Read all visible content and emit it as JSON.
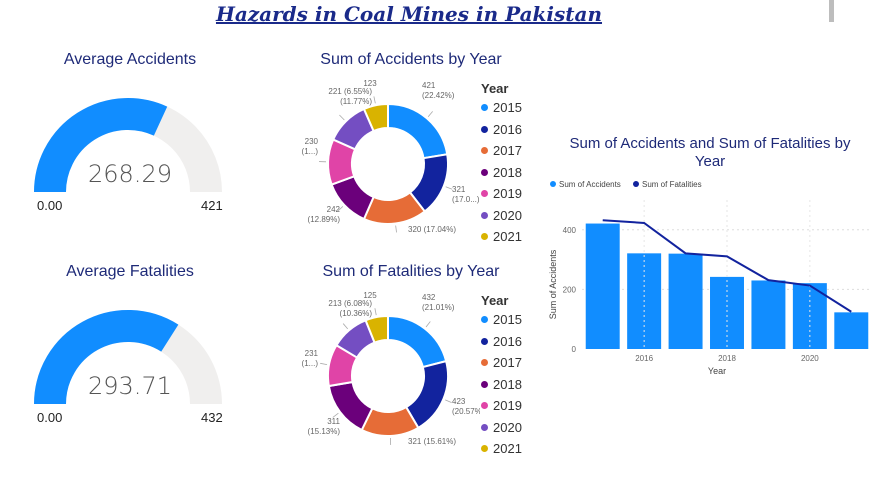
{
  "page_title": "Hazards in Coal Mines in Pakistan",
  "colors": {
    "title": "#1a2a8a",
    "gauge_fill": "#118dff",
    "gauge_track": "#f0efee",
    "bar": "#118dff",
    "line": "#12239e"
  },
  "year_colors": [
    "#118dff",
    "#12239e",
    "#e66c37",
    "#6b007b",
    "#e044a7",
    "#744ec2",
    "#d9b300"
  ],
  "gauges": [
    {
      "title": "Average Accidents",
      "value": "268.29",
      "min_label": "0.00",
      "max_label": "421",
      "fill_fraction": 0.637
    },
    {
      "title": "Average Fatalities",
      "value": "293.71",
      "min_label": "0.00",
      "max_label": "432",
      "fill_fraction": 0.68
    }
  ],
  "chart_data": [
    {
      "type": "pie",
      "title": "Sum of Accidents by Year",
      "legend_title": "Year",
      "categories": [
        "2015",
        "2016",
        "2017",
        "2018",
        "2019",
        "2020",
        "2021"
      ],
      "values": [
        421,
        321,
        320,
        242,
        230,
        221,
        123
      ],
      "labels": [
        [
          "421",
          "(22.42%)"
        ],
        [
          "321",
          "(17.0...)"
        ],
        [
          "320 (17.04%)"
        ],
        [
          "242",
          "(12.89%)"
        ],
        [
          "230",
          "(1...)"
        ],
        [
          "221 (6.55%)",
          "(11.77%)"
        ],
        [
          "123"
        ]
      ]
    },
    {
      "type": "pie",
      "title": "Sum of Fatalities by Year",
      "legend_title": "Year",
      "categories": [
        "2015",
        "2016",
        "2017",
        "2018",
        "2019",
        "2020",
        "2021"
      ],
      "values": [
        432,
        423,
        321,
        311,
        231,
        213,
        125
      ],
      "labels": [
        [
          "432",
          "(21.01%)"
        ],
        [
          "423",
          "(20.57%)"
        ],
        [
          "321 (15.61%)"
        ],
        [
          "311",
          "(15.13%)"
        ],
        [
          "231",
          "(1...)"
        ],
        [
          "213 (6.08%)",
          "(10.36%)"
        ],
        [
          "125"
        ]
      ]
    },
    {
      "type": "bar",
      "title": "Sum of Accidents and Sum of Fatalities by Year",
      "categories": [
        "2015",
        "2016",
        "2017",
        "2018",
        "2019",
        "2020",
        "2021"
      ],
      "series": [
        {
          "name": "Sum of Accidents",
          "kind": "bar",
          "values": [
            421,
            321,
            320,
            242,
            230,
            221,
            123
          ]
        },
        {
          "name": "Sum of Fatalities",
          "kind": "line",
          "values": [
            432,
            423,
            321,
            311,
            231,
            213,
            125
          ]
        }
      ],
      "xticks": [
        "2016",
        "2018",
        "2020"
      ],
      "yticks": [
        "0",
        "200",
        "400"
      ],
      "xlabel": "Year",
      "ylabel": "Sum of Accidents",
      "ylim": [
        0,
        500
      ],
      "grid": true,
      "legend_position": "top-left"
    }
  ]
}
